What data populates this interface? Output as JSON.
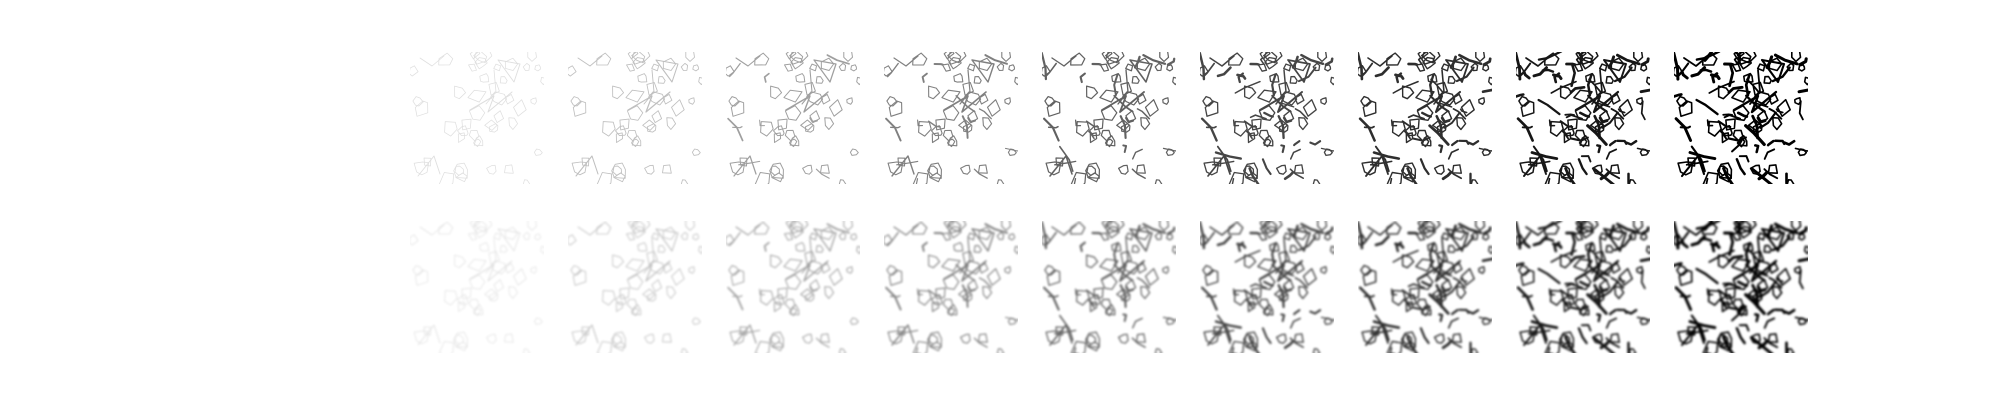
{
  "rows": [
    {
      "id": "sharp",
      "tiles": [
        {
          "level": 0.05
        },
        {
          "level": 0.18
        },
        {
          "level": 0.32
        },
        {
          "level": 0.45
        },
        {
          "level": 0.58
        },
        {
          "level": 0.7
        },
        {
          "level": 0.8
        },
        {
          "level": 0.9
        },
        {
          "level": 1.0
        }
      ]
    },
    {
      "id": "blurred",
      "tiles": [
        {
          "level": 0.05
        },
        {
          "level": 0.18
        },
        {
          "level": 0.32
        },
        {
          "level": 0.45
        },
        {
          "level": 0.58
        },
        {
          "level": 0.7
        },
        {
          "level": 0.8
        },
        {
          "level": 0.9
        },
        {
          "level": 1.0
        }
      ]
    }
  ],
  "colors": {
    "background": "#ffffff",
    "ink": "#000000"
  }
}
